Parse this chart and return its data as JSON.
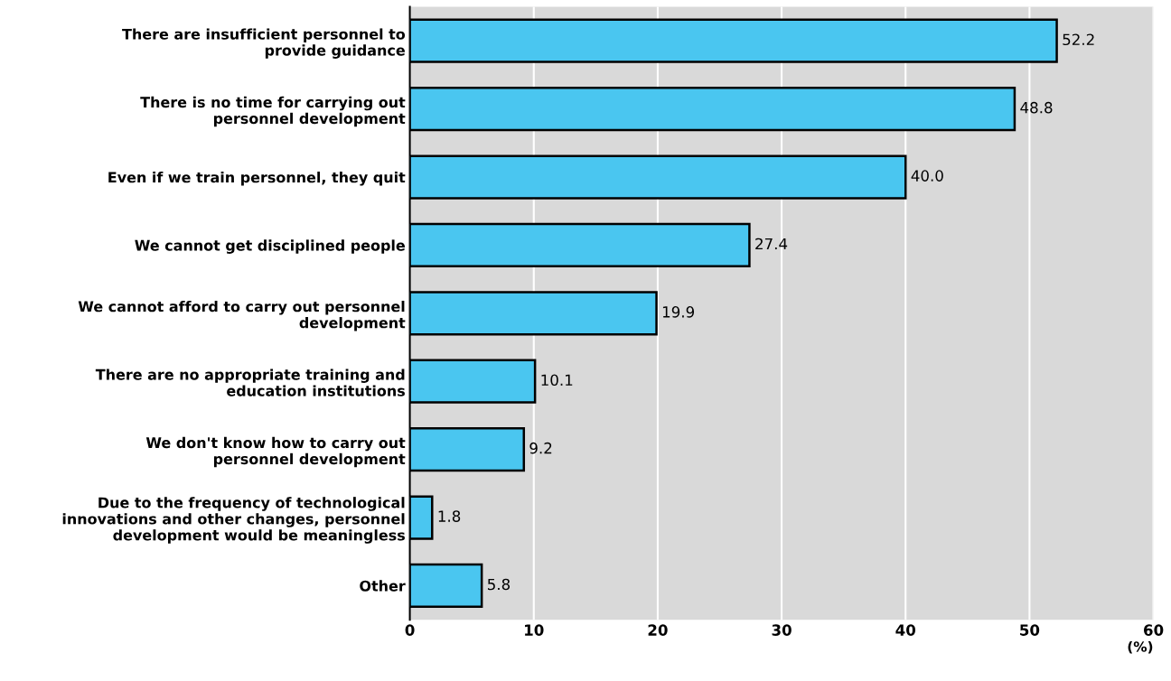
{
  "chart_data": {
    "type": "bar",
    "orientation": "horizontal",
    "xlabel": "(%)",
    "categories": [
      "There are insufficient personnel to\nprovide guidance",
      "There is no time for carrying out\npersonnel development",
      "Even if we train personnel, they quit",
      "We cannot get disciplined people",
      "We cannot afford to carry out personnel\ndevelopment",
      "There are no appropriate training and\neducation institutions",
      "We don't know how to carry out\npersonnel development",
      "Due to the frequency of technological\ninnovations and other changes, personnel\ndevelopment would be meaningless",
      "Other"
    ],
    "values": [
      52.2,
      48.8,
      40.0,
      27.4,
      19.9,
      10.1,
      9.2,
      1.8,
      5.8
    ],
    "value_labels": [
      "52.2",
      "48.8",
      "40.0",
      "27.4",
      "19.9",
      "10.1",
      "9.2",
      "1.8",
      "5.8"
    ],
    "color": "#4ac6f0",
    "xlim": [
      0,
      60
    ],
    "xticks": [
      0,
      10,
      20,
      30,
      40,
      50,
      60
    ],
    "grid": "x"
  }
}
